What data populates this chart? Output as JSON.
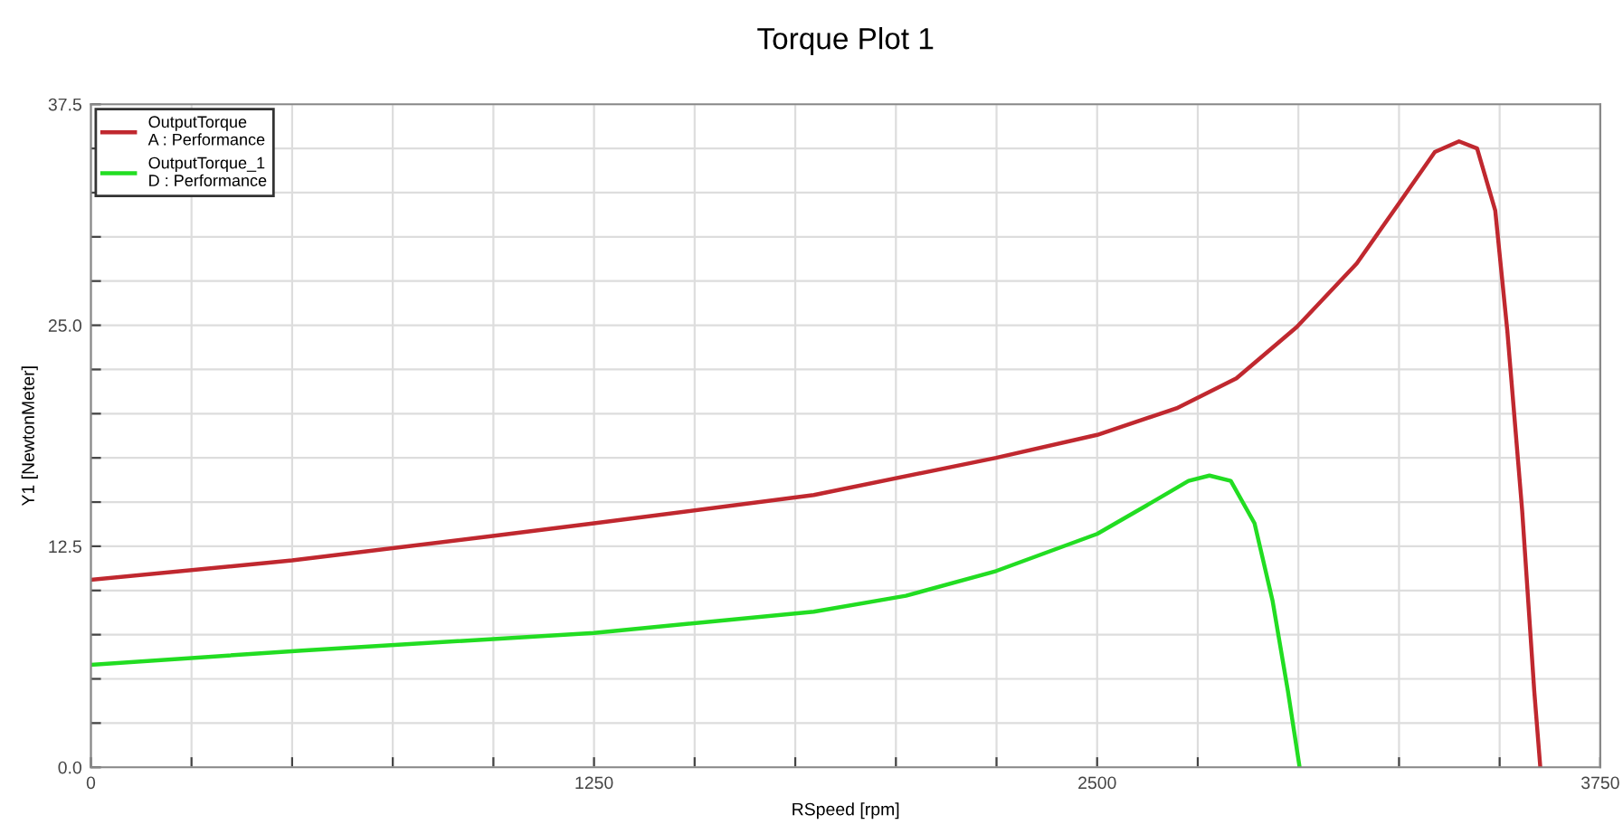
{
  "chart_data": {
    "type": "line",
    "title": "Torque Plot 1",
    "xlabel": "RSpeed [rpm]",
    "ylabel": "Y1 [NewtonMeter]",
    "xlim": [
      0,
      3750
    ],
    "ylim": [
      0,
      37.5
    ],
    "xticks": [
      0,
      {
        "value": 250,
        "label": null
      },
      {
        "value": 500,
        "label": null
      },
      {
        "value": 750,
        "label": null
      },
      {
        "value": 1000,
        "label": null
      },
      1250,
      {
        "value": 1500,
        "label": null
      },
      {
        "value": 1750,
        "label": null
      },
      {
        "value": 2000,
        "label": null
      },
      {
        "value": 2250,
        "label": null
      },
      2500,
      {
        "value": 2750,
        "label": null
      },
      {
        "value": 3000,
        "label": null
      },
      {
        "value": 3250,
        "label": null
      },
      {
        "value": 3500,
        "label": null
      },
      3750
    ],
    "yticks": [
      {
        "value": 0,
        "label": "0.0"
      },
      {
        "value": 2.5,
        "label": null
      },
      {
        "value": 5,
        "label": null
      },
      {
        "value": 7.5,
        "label": null
      },
      {
        "value": 10,
        "label": null
      },
      12.5,
      {
        "value": 15,
        "label": null
      },
      {
        "value": 17.5,
        "label": null
      },
      {
        "value": 20,
        "label": null
      },
      {
        "value": 22.5,
        "label": null
      },
      {
        "value": 25,
        "label": "25.0"
      },
      {
        "value": 27.5,
        "label": null
      },
      {
        "value": 30,
        "label": null
      },
      {
        "value": 32.5,
        "label": null
      },
      {
        "value": 35,
        "label": null
      },
      37.5
    ],
    "grid": true,
    "legend": "top left",
    "line_style": "solid",
    "marker": "none",
    "series": [
      {
        "name": "OutputTorque\nA : Performance",
        "color": "#c0282f",
        "x": [
          0,
          500,
          1003,
          1250,
          1796,
          2249,
          2500,
          2697,
          2846,
          2996,
          3145,
          3250,
          3339,
          3399,
          3444,
          3489,
          3519,
          3556,
          3586,
          3601
        ],
        "values": [
          10.6,
          11.7,
          13.1,
          13.8,
          15.4,
          17.5,
          18.8,
          20.3,
          22.0,
          24.9,
          28.5,
          31.9,
          34.8,
          35.4,
          35.0,
          31.5,
          24.7,
          14.5,
          4.3,
          0
        ]
      },
      {
        "name": "OutputTorque_1\nD : Performance",
        "color": "#22dd22",
        "x": [
          0,
          524,
          1250,
          1796,
          2025,
          2249,
          2500,
          2622,
          2727,
          2779,
          2832,
          2891,
          2936,
          2974,
          3003
        ],
        "values": [
          5.8,
          6.6,
          7.6,
          8.8,
          9.7,
          11.1,
          13.2,
          14.8,
          16.2,
          16.5,
          16.2,
          13.8,
          9.4,
          4.3,
          0
        ]
      }
    ]
  }
}
